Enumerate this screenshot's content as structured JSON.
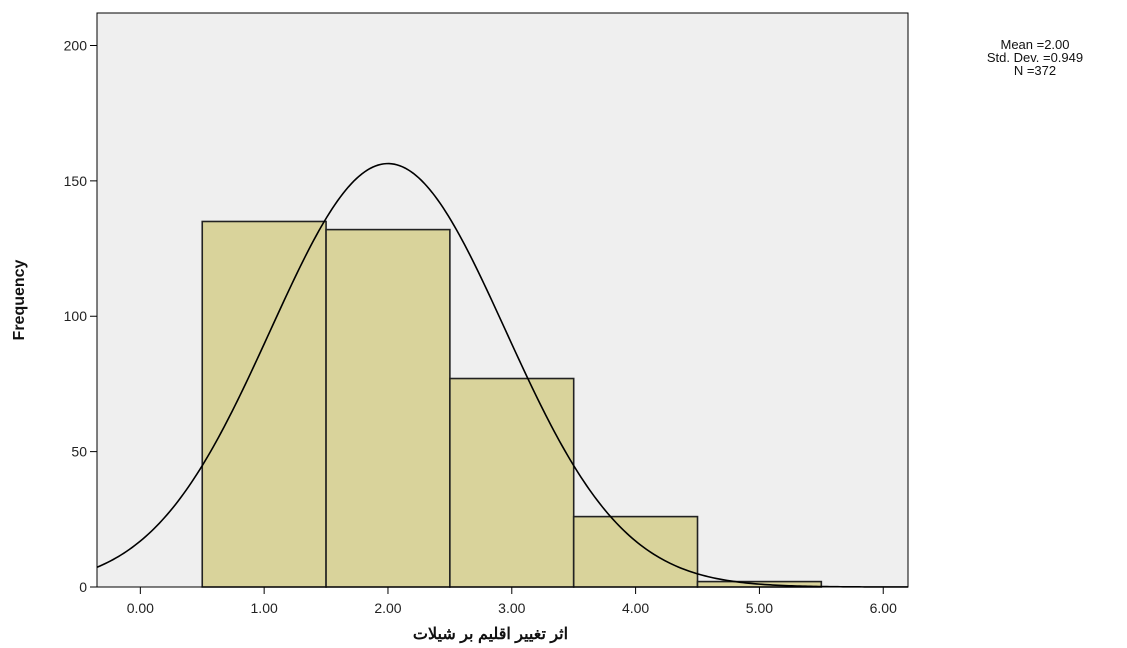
{
  "chart_data": {
    "type": "bar",
    "subtype": "histogram_with_normal_curve",
    "title": "",
    "xlabel": "اثر تغییر اقلیم بر شیلات",
    "ylabel": "Frequency",
    "xlim": [
      -0.35,
      6.2
    ],
    "ylim": [
      0,
      212
    ],
    "bin_width": 1.0,
    "bin_centers": [
      1.0,
      2.0,
      3.0,
      4.0,
      5.0
    ],
    "values": [
      135,
      132,
      77,
      26,
      2
    ],
    "x_ticks": [
      0,
      1,
      2,
      3,
      4,
      5,
      6
    ],
    "x_tick_labels": [
      "0.00",
      "1.00",
      "2.00",
      "3.00",
      "4.00",
      "5.00",
      "6.00"
    ],
    "y_ticks": [
      0,
      50,
      100,
      150,
      200
    ],
    "y_tick_labels": [
      "0",
      "50",
      "100",
      "150",
      "200"
    ],
    "normal_curve": {
      "mean": 2.0,
      "std": 0.949,
      "n": 372
    },
    "stats_text": [
      "Mean =2.00",
      "Std. Dev. =0.949",
      "N =372"
    ],
    "grid": false,
    "colors": {
      "plot_background": "#efefef",
      "bar_fill": "#d9d39b",
      "bar_stroke": "#222222",
      "curve": "#000000"
    }
  }
}
